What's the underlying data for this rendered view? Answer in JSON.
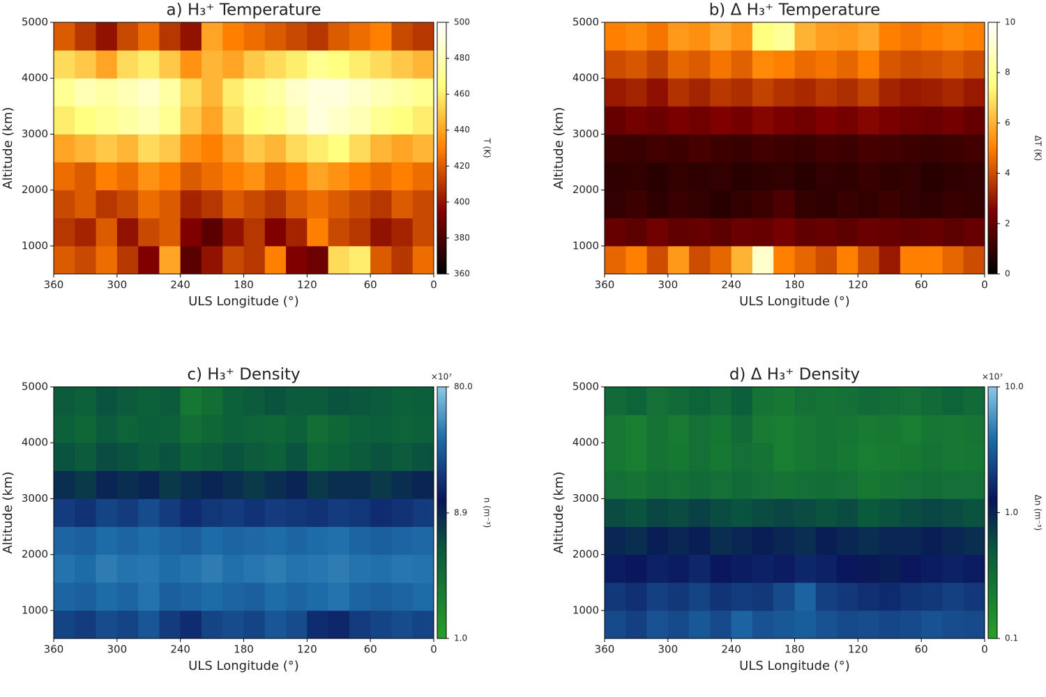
{
  "chart_data": [
    {
      "type": "heatmap",
      "title": "a) H₃⁺ Temperature",
      "xlabel": "ULS Longitude (°)",
      "ylabel": "Altitude (km)",
      "xbins": [
        360,
        340,
        320,
        300,
        280,
        260,
        240,
        220,
        200,
        180,
        160,
        140,
        120,
        100,
        80,
        60,
        40,
        20,
        0
      ],
      "ybins": [
        500,
        1000,
        1500,
        2000,
        2500,
        3000,
        3500,
        4000,
        4500,
        5000
      ],
      "z": [
        [
          420,
          415,
          425,
          410,
          395,
          440,
          385,
          400,
          415,
          410,
          430,
          395,
          390,
          455,
          460,
          420,
          410,
          425
        ],
        [
          410,
          405,
          420,
          400,
          415,
          420,
          395,
          385,
          400,
          410,
          395,
          405,
          430,
          415,
          410,
          400,
          405,
          415
        ],
        [
          415,
          420,
          410,
          415,
          425,
          420,
          405,
          410,
          420,
          415,
          410,
          420,
          425,
          420,
          415,
          410,
          420,
          415
        ],
        [
          425,
          420,
          430,
          425,
          435,
          430,
          420,
          425,
          430,
          435,
          425,
          430,
          440,
          435,
          430,
          425,
          430,
          425
        ],
        [
          440,
          445,
          450,
          445,
          455,
          450,
          435,
          430,
          440,
          450,
          445,
          455,
          460,
          465,
          455,
          445,
          440,
          445
        ],
        [
          460,
          465,
          470,
          475,
          480,
          470,
          450,
          440,
          455,
          465,
          470,
          480,
          490,
          485,
          480,
          470,
          465,
          460
        ],
        [
          470,
          480,
          475,
          480,
          485,
          475,
          455,
          445,
          460,
          470,
          475,
          485,
          490,
          490,
          485,
          480,
          475,
          470
        ],
        [
          455,
          450,
          440,
          455,
          460,
          450,
          435,
          445,
          440,
          450,
          455,
          460,
          470,
          465,
          460,
          455,
          450,
          445
        ],
        [
          420,
          410,
          400,
          415,
          425,
          410,
          400,
          440,
          430,
          425,
          420,
          415,
          410,
          420,
          425,
          430,
          415,
          410
        ]
      ],
      "xlim": [
        360,
        0
      ],
      "ylim": [
        500,
        5000
      ],
      "xticks": [
        360,
        300,
        240,
        180,
        120,
        60,
        0
      ],
      "yticks": [
        1000,
        2000,
        3000,
        4000,
        5000
      ],
      "zlim": [
        360,
        500
      ],
      "zticks": [
        360,
        380,
        400,
        420,
        440,
        460,
        480,
        500
      ],
      "zlabel": "T (K)",
      "zscale": "linear",
      "colormap": "afmhot"
    },
    {
      "type": "heatmap",
      "title": "b) Δ H₃⁺ Temperature",
      "xlabel": "ULS Longitude (°)",
      "ylabel": "Altitude (km)",
      "xbins": [
        360,
        340,
        320,
        300,
        280,
        260,
        240,
        220,
        200,
        180,
        160,
        140,
        120,
        100,
        80,
        60,
        40,
        20,
        0
      ],
      "ybins": [
        500,
        1000,
        1500,
        2000,
        2500,
        3000,
        3500,
        4000,
        4500,
        5000
      ],
      "z": [
        [
          4.5,
          5,
          4,
          5.5,
          4,
          4.5,
          6,
          9,
          5,
          4.5,
          4,
          5,
          4,
          3,
          5,
          5,
          4.5,
          4
        ],
        [
          2,
          1.8,
          2.2,
          1.9,
          2,
          1.8,
          2.1,
          2,
          2.3,
          1.9,
          2,
          1.8,
          2.1,
          2,
          1.9,
          2,
          1.8,
          2
        ],
        [
          1,
          1.2,
          0.9,
          1.1,
          1,
          0.8,
          1,
          1.2,
          1.5,
          1,
          0.9,
          1.1,
          1,
          1.2,
          1,
          0.9,
          1.1,
          1
        ],
        [
          0.9,
          1,
          0.8,
          1,
          0.9,
          1,
          0.8,
          0.9,
          1,
          0.8,
          1,
          0.9,
          1.1,
          0.9,
          1,
          0.8,
          0.9,
          1
        ],
        [
          1.2,
          1.1,
          1.3,
          1.2,
          1.4,
          1.2,
          1.1,
          1.3,
          1.2,
          1.1,
          1.3,
          1.2,
          1.4,
          1.3,
          1.2,
          1.1,
          1.2,
          1.3
        ],
        [
          2,
          2.3,
          2.1,
          2.4,
          2.2,
          2.5,
          2.3,
          2.6,
          2.4,
          2.2,
          2.5,
          2.3,
          2.6,
          2.4,
          2.2,
          2.1,
          2.3,
          2
        ],
        [
          3,
          3.2,
          2.8,
          3.5,
          3.2,
          3.6,
          3.4,
          3.8,
          3.5,
          3.3,
          3.6,
          3.4,
          3.8,
          3.2,
          3,
          3.1,
          3.3,
          3
        ],
        [
          4,
          4.2,
          3.8,
          4.5,
          4.3,
          4.8,
          4.4,
          5.2,
          5,
          4.6,
          4.8,
          4.5,
          5,
          4.2,
          4,
          4.1,
          4.3,
          4
        ],
        [
          5,
          5.2,
          4.8,
          5.5,
          5.3,
          5.8,
          5.4,
          7.5,
          8,
          6,
          5.6,
          5.5,
          5.8,
          5,
          4.8,
          5,
          5.2,
          5
        ]
      ],
      "xlim": [
        360,
        0
      ],
      "ylim": [
        500,
        5000
      ],
      "xticks": [
        360,
        300,
        240,
        180,
        120,
        60,
        0
      ],
      "yticks": [
        1000,
        2000,
        3000,
        4000,
        5000
      ],
      "zlim": [
        0,
        10
      ],
      "zticks": [
        0,
        2,
        4,
        6,
        8,
        10
      ],
      "zlabel": "ΔT (K)",
      "zscale": "linear",
      "colormap": "afmhot"
    },
    {
      "type": "heatmap",
      "title": "c) H₃⁺ Density",
      "xlabel": "ULS Longitude (°)",
      "ylabel": "Altitude (km)",
      "xbins": [
        360,
        340,
        320,
        300,
        280,
        260,
        240,
        220,
        200,
        180,
        160,
        140,
        120,
        100,
        80,
        60,
        40,
        20,
        0
      ],
      "ybins": [
        500,
        1000,
        1500,
        2000,
        2500,
        3000,
        3500,
        4000,
        4500,
        5000
      ],
      "z": [
        [
          20,
          18,
          22,
          20,
          25,
          18,
          15,
          20,
          22,
          20,
          25,
          22,
          15,
          14,
          18,
          20,
          22,
          20
        ],
        [
          30,
          28,
          32,
          30,
          35,
          28,
          30,
          32,
          30,
          28,
          33,
          30,
          32,
          35,
          30,
          28,
          30,
          32
        ],
        [
          35,
          32,
          38,
          35,
          36,
          33,
          35,
          38,
          34,
          36,
          38,
          35,
          36,
          38,
          35,
          34,
          36,
          35
        ],
        [
          30,
          28,
          32,
          30,
          33,
          30,
          28,
          32,
          30,
          31,
          33,
          30,
          32,
          34,
          30,
          28,
          30,
          31
        ],
        [
          18,
          16,
          20,
          18,
          22,
          18,
          15,
          17,
          18,
          16,
          18,
          17,
          16,
          18,
          17,
          15,
          16,
          18
        ],
        [
          8,
          7,
          9,
          8,
          9,
          7,
          8,
          9,
          8,
          7,
          8,
          9,
          7,
          8,
          8,
          7,
          8,
          9
        ],
        [
          5,
          4.5,
          5.5,
          5,
          4.5,
          5,
          4,
          4.5,
          5,
          4.5,
          4,
          5,
          3.5,
          4,
          4.5,
          5,
          4.5,
          5
        ],
        [
          4,
          3.5,
          4.5,
          3.8,
          4.2,
          4,
          3,
          3.5,
          4,
          3.8,
          3.5,
          4,
          3,
          3.5,
          4,
          4.2,
          3.8,
          4
        ],
        [
          4.5,
          4,
          5,
          4.5,
          4,
          4.5,
          2.5,
          3,
          4,
          4.5,
          5,
          4.5,
          4.5,
          5,
          4.8,
          4.5,
          4,
          4.2
        ]
      ],
      "xlim": [
        360,
        0
      ],
      "ylim": [
        500,
        5000
      ],
      "xticks": [
        360,
        300,
        240,
        180,
        120,
        60,
        0
      ],
      "yticks": [
        1000,
        2000,
        3000,
        4000,
        5000
      ],
      "zlim": [
        1,
        80
      ],
      "zticks": [
        {
          "value": 1,
          "label": "1.0"
        },
        {
          "value": 8.9,
          "label": "8.9"
        },
        {
          "value": 80,
          "label": "80.0"
        }
      ],
      "zlabel": "n (m⁻³)",
      "zoffset": "×10⁷",
      "zscale": "log",
      "colormap": "ocean-blue"
    },
    {
      "type": "heatmap",
      "title": "d) Δ H₃⁺ Density",
      "xlabel": "ULS Longitude (°)",
      "ylabel": "Altitude (km)",
      "xbins": [
        360,
        340,
        320,
        300,
        280,
        260,
        240,
        220,
        200,
        180,
        160,
        140,
        120,
        100,
        80,
        60,
        40,
        20,
        0
      ],
      "ybins": [
        500,
        1000,
        1500,
        2000,
        2500,
        3000,
        3500,
        4000,
        4500,
        5000
      ],
      "z": [
        [
          2.5,
          2.2,
          2.8,
          2.5,
          3,
          2.5,
          3.5,
          2.8,
          3,
          3.2,
          2.8,
          2.5,
          2.6,
          2.4,
          2.5,
          2.8,
          2.6,
          2.5
        ],
        [
          2,
          1.8,
          2.2,
          2,
          2.3,
          1.9,
          2.1,
          2,
          2.5,
          3.5,
          2.2,
          2,
          1.8,
          1.7,
          1.9,
          2,
          2.2,
          2
        ],
        [
          1.4,
          1.3,
          1.5,
          1.4,
          1.6,
          1.3,
          1.4,
          1.5,
          1.4,
          1.6,
          1.5,
          1.3,
          1.2,
          1.1,
          1.3,
          1.4,
          1.5,
          1.4
        ],
        [
          1,
          0.9,
          1.1,
          1,
          1.1,
          0.9,
          1,
          1.1,
          1,
          0.9,
          1.1,
          1,
          0.9,
          1,
          1,
          1.1,
          1,
          0.9
        ],
        [
          0.6,
          0.55,
          0.65,
          0.6,
          0.7,
          0.6,
          0.55,
          0.6,
          0.65,
          0.6,
          0.55,
          0.6,
          0.5,
          0.55,
          0.6,
          0.65,
          0.6,
          0.55
        ],
        [
          0.3,
          0.28,
          0.32,
          0.3,
          0.35,
          0.3,
          0.35,
          0.3,
          0.28,
          0.3,
          0.32,
          0.3,
          0.25,
          0.28,
          0.3,
          0.32,
          0.3,
          0.3
        ],
        [
          0.25,
          0.22,
          0.28,
          0.25,
          0.3,
          0.25,
          0.3,
          0.28,
          0.22,
          0.25,
          0.28,
          0.25,
          0.22,
          0.24,
          0.25,
          0.28,
          0.25,
          0.26
        ],
        [
          0.25,
          0.22,
          0.28,
          0.24,
          0.3,
          0.26,
          0.35,
          0.24,
          0.22,
          0.25,
          0.28,
          0.26,
          0.24,
          0.25,
          0.22,
          0.26,
          0.25,
          0.27
        ],
        [
          0.35,
          0.4,
          0.3,
          0.35,
          0.4,
          0.35,
          0.45,
          0.28,
          0.25,
          0.3,
          0.28,
          0.3,
          0.35,
          0.32,
          0.3,
          0.35,
          0.4,
          0.35
        ]
      ],
      "xlim": [
        360,
        0
      ],
      "ylim": [
        500,
        5000
      ],
      "xticks": [
        360,
        300,
        240,
        180,
        120,
        60,
        0
      ],
      "yticks": [
        1000,
        2000,
        3000,
        4000,
        5000
      ],
      "zlim": [
        0.1,
        10
      ],
      "zticks": [
        {
          "value": 0.1,
          "label": "0.1"
        },
        {
          "value": 1,
          "label": "1.0"
        },
        {
          "value": 10,
          "label": "10.0"
        }
      ],
      "zlabel": "Δn (m⁻³)",
      "zoffset": "×10⁷",
      "zscale": "log",
      "colormap": "ocean-blue"
    }
  ]
}
